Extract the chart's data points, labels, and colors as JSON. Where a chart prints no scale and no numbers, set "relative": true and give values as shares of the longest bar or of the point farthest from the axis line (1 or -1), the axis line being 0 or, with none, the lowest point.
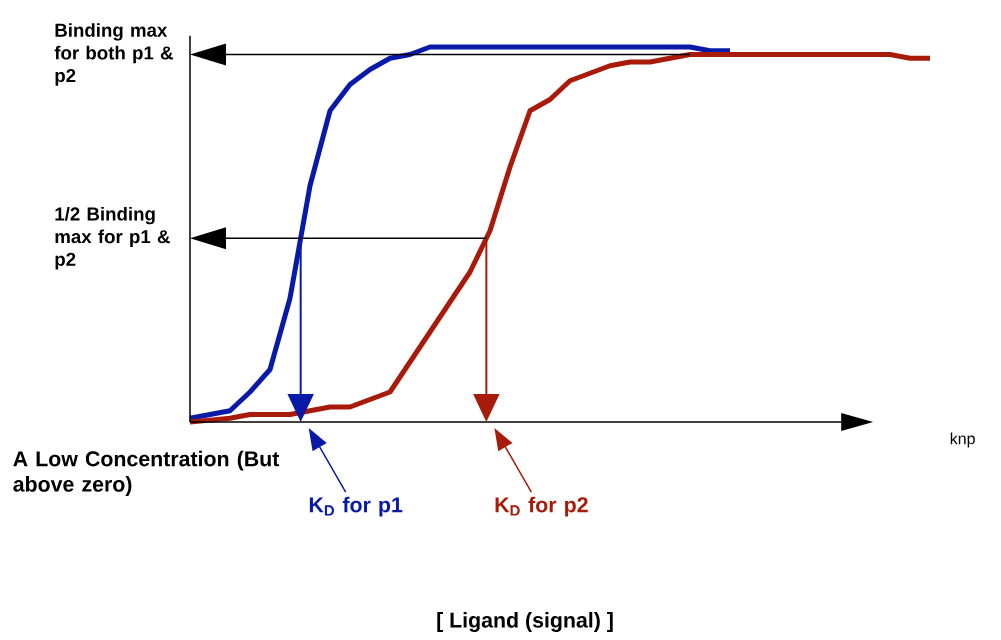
{
  "chart_data": {
    "type": "line",
    "relative": true,
    "categories": [
      null,
      null,
      null,
      null,
      null,
      null,
      null,
      null,
      null,
      null,
      null,
      null,
      null,
      null,
      null,
      null,
      null,
      null,
      null,
      null,
      null,
      null,
      null,
      null,
      null,
      null,
      null,
      null,
      null,
      null,
      null,
      null,
      null,
      null,
      null,
      null,
      null,
      null
    ],
    "series": [
      {
        "color": "#0a1aa8",
        "values": [
          0.01,
          0.02,
          0.03,
          0.08,
          0.14,
          0.33,
          0.63,
          0.83,
          0.9,
          0.94,
          0.97,
          0.98,
          1.0,
          1.0,
          1.0,
          1.0,
          1.0,
          1.0,
          1.0,
          1.0,
          1.0,
          1.0,
          1.0,
          1.0,
          1.0,
          1.0,
          0.99,
          0.99,
          null,
          null,
          null,
          null,
          null,
          null,
          null,
          null,
          null,
          null
        ]
      },
      {
        "color": "#a81a0a",
        "values": [
          0,
          0.005,
          0.01,
          0.02,
          0.02,
          0.02,
          0.03,
          0.04,
          0.04,
          0.06,
          0.08,
          0.16,
          0.24,
          0.32,
          0.4,
          0.51,
          0.68,
          0.83,
          0.86,
          0.91,
          0.93,
          0.95,
          0.96,
          0.96,
          0.97,
          0.98,
          0.98,
          0.98,
          0.98,
          0.98,
          0.98,
          0.98,
          0.98,
          0.98,
          0.98,
          0.98,
          0.97,
          0.97
        ]
      }
    ],
    "ref_lines": [
      {
        "axis": "y",
        "value": 0.98,
        "label": "Binding max for both p1 & p2"
      },
      {
        "axis": "y",
        "value": 0.49,
        "label": "1/2 Binding max for p1 & p2"
      }
    ],
    "annotations": [
      "A Low Concentration (But above zero)",
      "K$_{D}$ for p1",
      "K$_{D}$ for p2",
      "knp",
      "[ Ligand (signal) ]"
    ]
  }
}
